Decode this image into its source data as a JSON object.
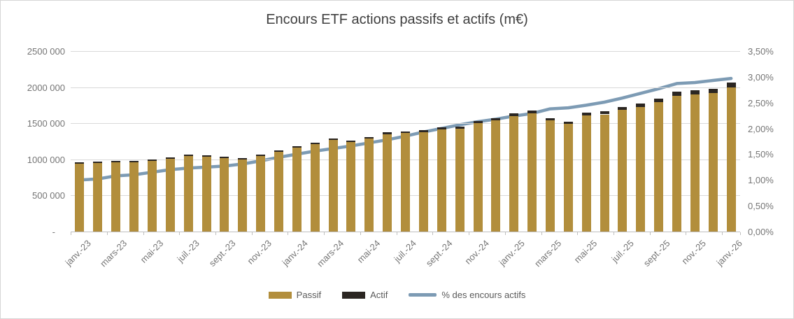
{
  "title": "Encours ETF actions passifs et actifs (m€)",
  "legend": {
    "passif": "Passif",
    "actif": "Actif",
    "line": "% des encours actifs"
  },
  "colors": {
    "passif_bar": "#B28E3C",
    "actif_bar": "#2B2622",
    "trend_line": "#7D9BB4",
    "gridline": "#D9D9D9",
    "axis_line": "#BFBFBF",
    "title_text": "#3F3F3F",
    "axis_text": "#757575",
    "legend_text": "#595959"
  },
  "chart_data": {
    "type": "bar",
    "subtype": "stacked-bars-with-line-dual-axis",
    "title": "Encours ETF actions passifs et actifs (m€)",
    "grid": "horizontal-only",
    "legend_position": "bottom",
    "n_bars": 37,
    "x_label_every_n_bars": 2,
    "x_tick_labels": [
      "janv.-23",
      "mars-23",
      "mai-23",
      "juil.-23",
      "sept.-23",
      "nov.-23",
      "janv.-24",
      "mars-24",
      "mai-24",
      "juil.-24",
      "sept.-24",
      "nov.-24",
      "janv.-25",
      "mars-25",
      "mai-25",
      "juil.-25",
      "sept.-25",
      "nov.-25",
      "janv.-26"
    ],
    "left_axis": {
      "tick_labels": [
        "2500 000",
        "2000 000",
        "1500 000",
        "1000 000",
        "500 000",
        "-"
      ],
      "min": 0,
      "max": 2500000,
      "step": 500000
    },
    "right_axis": {
      "tick_labels": [
        "3,50%",
        "3,00%",
        "2,50%",
        "2,00%",
        "1,50%",
        "1,00%",
        "0,50%",
        "0,00%"
      ],
      "min_percent": 0.0,
      "max_percent": 3.5,
      "step_percent": 0.5
    },
    "series": [
      {
        "name": "Passif",
        "type": "bar",
        "stack": "encours",
        "values": [
          940500,
          952200,
          964500,
          957400,
          978600,
          1007800,
          1047000,
          1034900,
          1016900,
          996800,
          1050400,
          1108800,
          1162300,
          1215700,
          1269200,
          1239100,
          1287500,
          1350500,
          1364300,
          1377900,
          1411200,
          1424900,
          1502300,
          1540700,
          1598400,
          1641500,
          1537500,
          1488400,
          1604700,
          1623200,
          1685200,
          1727400,
          1793900,
          1879500,
          1898500,
          1917100,
          1998800
        ]
      },
      {
        "name": "Actif",
        "type": "bar",
        "stack": "encours",
        "values": [
          9500,
          9800,
          10500,
          10600,
          11400,
          12200,
          13000,
          13100,
          13100,
          13200,
          14600,
          16200,
          17700,
          19300,
          20800,
          20900,
          22500,
          24500,
          25700,
          27100,
          28800,
          30100,
          32700,
          34300,
          36600,
          38500,
          37500,
          36600,
          40300,
          41800,
          44800,
          47600,
          51100,
          55500,
          56500,
          57900,
          61200
        ]
      },
      {
        "name": "% des encours actifs",
        "type": "line",
        "y_axis": "right",
        "values_percent": [
          1.0,
          1.02,
          1.08,
          1.1,
          1.15,
          1.2,
          1.23,
          1.25,
          1.27,
          1.31,
          1.37,
          1.44,
          1.5,
          1.56,
          1.61,
          1.66,
          1.72,
          1.78,
          1.85,
          1.93,
          2.0,
          2.07,
          2.13,
          2.18,
          2.24,
          2.29,
          2.38,
          2.4,
          2.45,
          2.51,
          2.59,
          2.68,
          2.77,
          2.87,
          2.89,
          2.93,
          2.97
        ]
      }
    ]
  }
}
